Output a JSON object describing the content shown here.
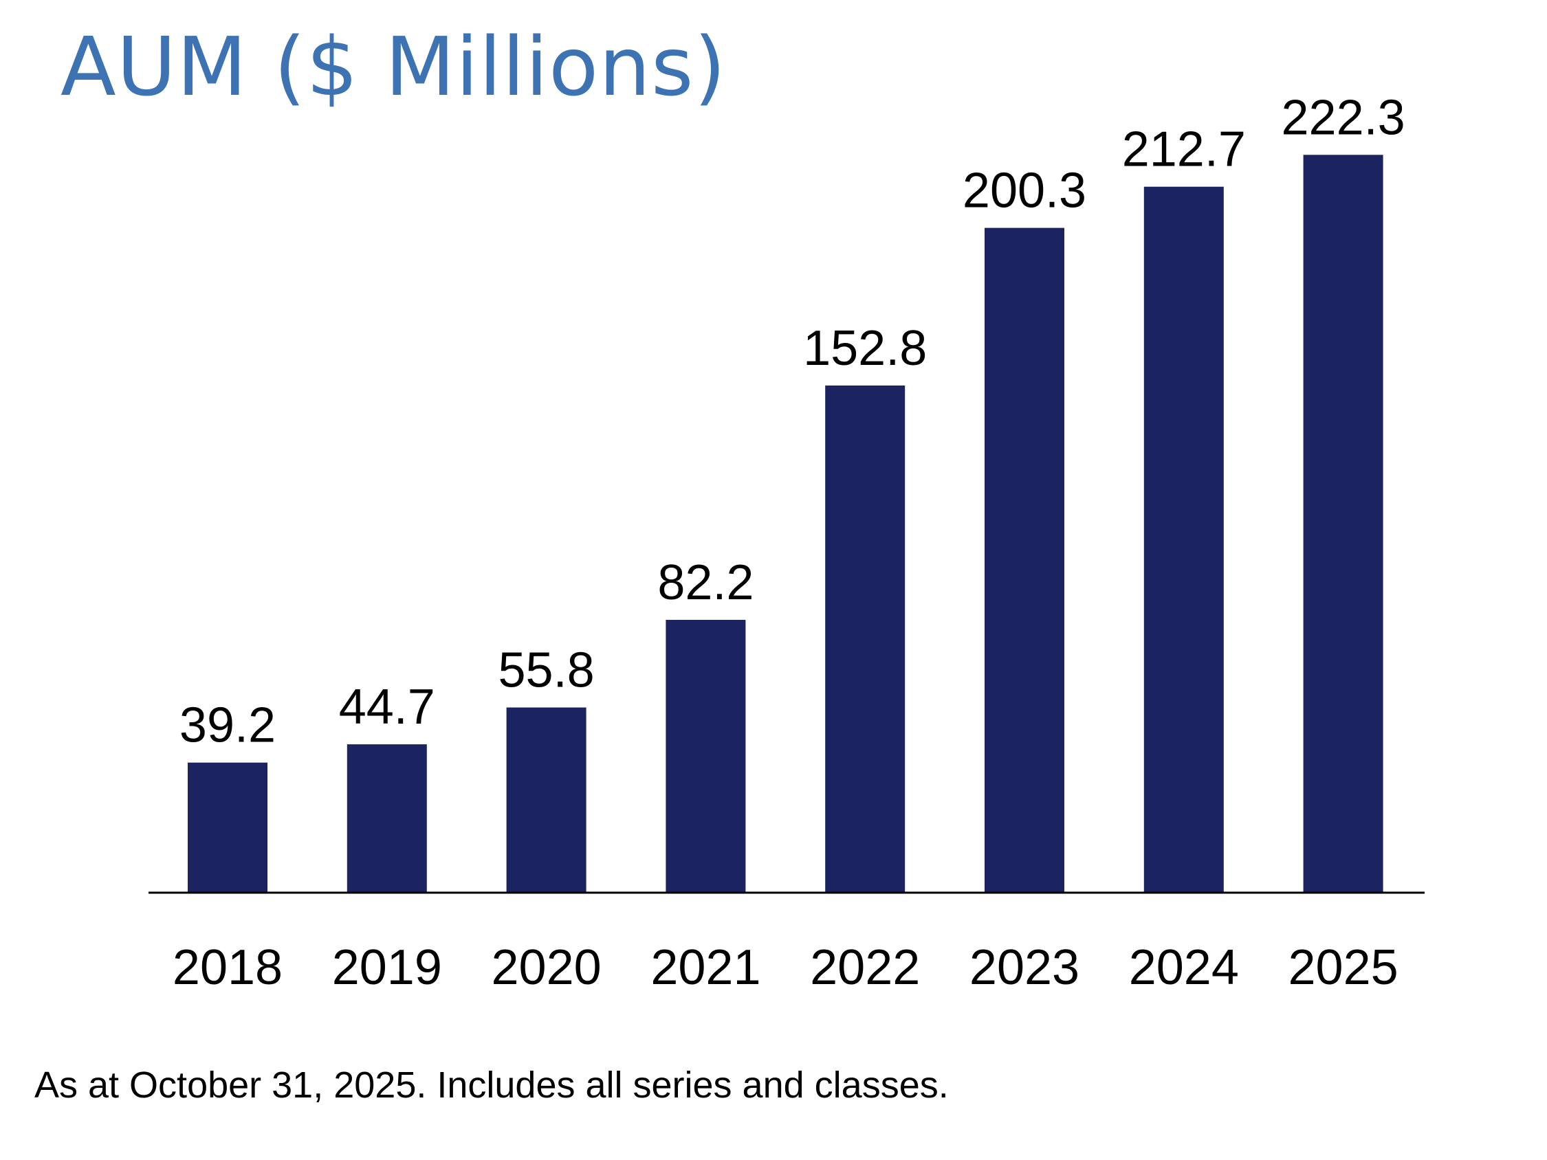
{
  "chart_data": {
    "type": "bar",
    "title": "AUM ($ Millions)",
    "categories": [
      "2018",
      "2019",
      "2020",
      "2021",
      "2022",
      "2023",
      "2024",
      "2025"
    ],
    "values": [
      39.2,
      44.7,
      55.8,
      82.2,
      152.8,
      200.3,
      212.7,
      222.3
    ],
    "data_labels": [
      "39.2",
      "44.7",
      "55.8",
      "82.2",
      "152.8",
      "200.3",
      "212.7",
      "222.3"
    ],
    "ylim": [
      0,
      240
    ],
    "grid": false,
    "legend": "none",
    "colors": {
      "title": "#3d72b3",
      "bar": "#1b2460",
      "axis": "#000000"
    }
  },
  "footnote": "As at October 31, 2025. Includes all series and classes."
}
